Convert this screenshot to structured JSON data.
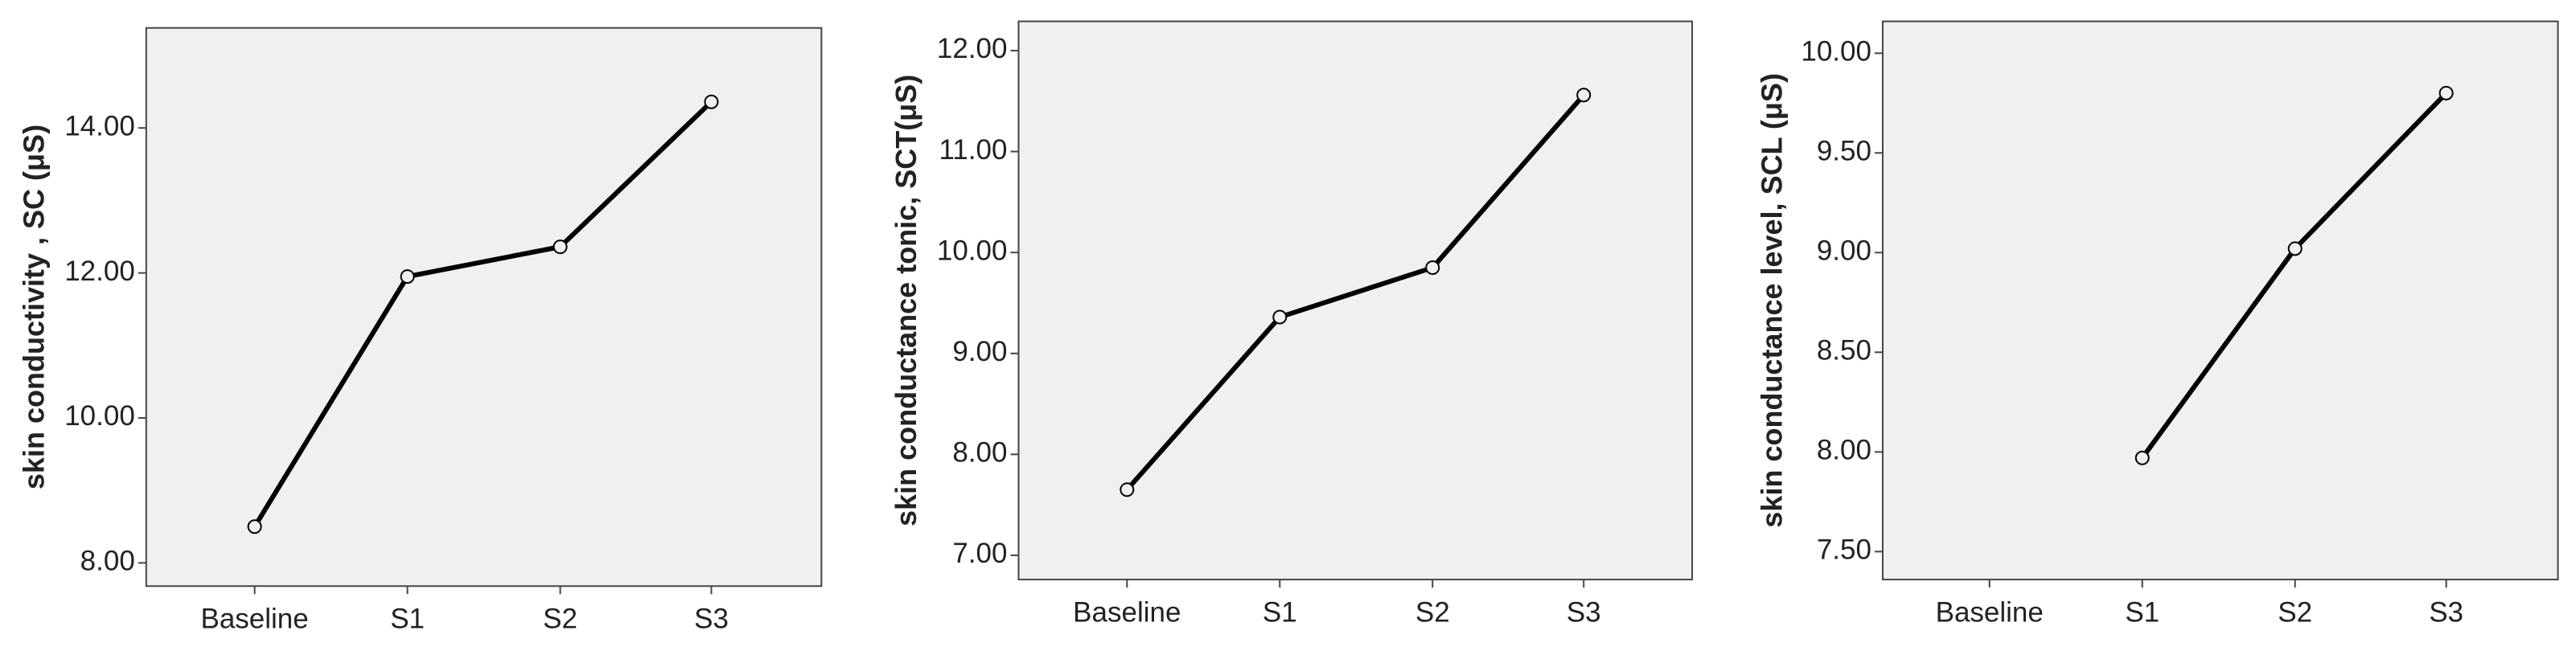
{
  "chart_data": [
    {
      "type": "line",
      "y_label": "skin conductivity , SC (μS)",
      "categories": [
        "Baseline",
        "S1",
        "S2",
        "S3"
      ],
      "series": [
        {
          "color": "#000000",
          "values": [
            8.5,
            11.95,
            12.36,
            14.36
          ]
        }
      ],
      "ylim": [
        7.68,
        15.38
      ],
      "yticks": [
        {
          "value": 8,
          "label": "8.00"
        },
        {
          "value": 10,
          "label": "10.00"
        },
        {
          "value": 12,
          "label": "12.00"
        },
        {
          "value": 14,
          "label": "14.00"
        }
      ]
    },
    {
      "type": "line",
      "y_label": "skin conductance tonic, SCT(μS)",
      "categories": [
        "Baseline",
        "S1",
        "S2",
        "S3"
      ],
      "series": [
        {
          "color": "#000000",
          "values": [
            7.65,
            9.36,
            9.85,
            11.56
          ]
        }
      ],
      "ylim": [
        6.76,
        12.29
      ],
      "yticks": [
        {
          "value": 7,
          "label": "7.00"
        },
        {
          "value": 8,
          "label": "8.00"
        },
        {
          "value": 9,
          "label": "9.00"
        },
        {
          "value": 10,
          "label": "10.00"
        },
        {
          "value": 11,
          "label": "11.00"
        },
        {
          "value": 12,
          "label": "12.00"
        }
      ]
    },
    {
      "type": "line",
      "y_label": "skin conductance level, SCL (μS)",
      "categories": [
        "Baseline",
        "S1",
        "S2",
        "S3"
      ],
      "series": [
        {
          "color": "#000000",
          "values": [
            null,
            7.97,
            9.02,
            9.8
          ]
        }
      ],
      "ylim": [
        7.36,
        10.16
      ],
      "yticks": [
        {
          "value": 7.5,
          "label": "7.50"
        },
        {
          "value": 8,
          "label": "8.00"
        },
        {
          "value": 8.5,
          "label": "8.50"
        },
        {
          "value": 9,
          "label": "9.00"
        },
        {
          "value": 9.5,
          "label": "9.50"
        },
        {
          "value": 10,
          "label": "10.00"
        }
      ]
    }
  ]
}
